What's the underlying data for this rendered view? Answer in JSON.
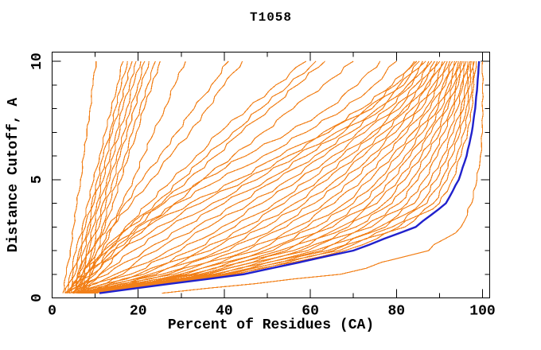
{
  "chart_data": {
    "type": "line",
    "title": "T1058",
    "xlabel": "Percent of Residues (CA)",
    "ylabel": "Distance Cutoff, A",
    "xlim": [
      0,
      101.7
    ],
    "ylim": [
      0,
      10.39
    ],
    "x_ticks": [
      0,
      10,
      20,
      30,
      40,
      50,
      60,
      70,
      80,
      90,
      100
    ],
    "x_tick_labels": [
      "0",
      "20",
      "40",
      "60",
      "80",
      "100"
    ],
    "x_labeled_ticks": [
      0,
      20,
      40,
      60,
      80,
      100
    ],
    "y_ticks": [
      0,
      1,
      2,
      3,
      4,
      5,
      6,
      7,
      8,
      9,
      10
    ],
    "y_tick_labels": [
      "0",
      "5",
      "10"
    ],
    "y_labeled_ticks": [
      0,
      5,
      10
    ],
    "grid": false,
    "legend": false,
    "colors": {
      "orange": "#f28019",
      "blue": "#2121cc"
    },
    "cutoffs": [
      0.2,
      1,
      2,
      3,
      4,
      5,
      6,
      7,
      8,
      9,
      10
    ],
    "series": [
      {
        "id": "orange-01",
        "color": "orange",
        "x": [
          2.5,
          3.3,
          4.2,
          5,
          5.8,
          6.6,
          7.4,
          8.1,
          8.8,
          9.5,
          10.2
        ]
      },
      {
        "id": "orange-02",
        "color": "orange",
        "x": [
          3,
          4.2,
          5.6,
          7,
          8.3,
          9.7,
          11,
          12.4,
          13.8,
          15.1,
          16.5
        ]
      },
      {
        "id": "orange-03",
        "color": "orange",
        "x": [
          3.4,
          4.8,
          6.3,
          7.7,
          9.2,
          10.5,
          11.9,
          13.4,
          14.7,
          16.1,
          17.5
        ]
      },
      {
        "id": "orange-04",
        "color": "orange",
        "x": [
          3.9,
          5.3,
          6.8,
          8.3,
          9.7,
          11.2,
          12.6,
          14,
          15.5,
          17,
          18.6
        ]
      },
      {
        "id": "orange-05",
        "color": "orange",
        "x": [
          4.4,
          5.9,
          7.4,
          8.9,
          10.4,
          11.9,
          13.5,
          14.9,
          16.4,
          18,
          19.5
        ]
      },
      {
        "id": "orange-06",
        "color": "orange",
        "x": [
          4.9,
          6.4,
          8,
          9.5,
          11.1,
          12.7,
          14.2,
          15.7,
          17.3,
          18.9,
          20.6
        ]
      },
      {
        "id": "orange-07",
        "color": "orange",
        "x": [
          5.4,
          7,
          8.6,
          10.2,
          11.8,
          13.4,
          15,
          16.7,
          18.3,
          19.9,
          21.5
        ]
      },
      {
        "id": "orange-08",
        "color": "orange",
        "x": [
          5.9,
          7.5,
          9.2,
          10.9,
          12.5,
          14.2,
          15.8,
          17.4,
          19.1,
          20.8,
          22.5
        ]
      },
      {
        "id": "orange-09",
        "color": "orange",
        "x": [
          6.4,
          8.1,
          9.9,
          11.6,
          13.4,
          15.1,
          16.9,
          18.7,
          20.4,
          22.2,
          24
        ]
      },
      {
        "id": "orange-10",
        "color": "orange",
        "x": [
          6.9,
          8.7,
          10.5,
          12.3,
          14.1,
          16,
          17.8,
          19.6,
          21.4,
          23.2,
          25.1
        ]
      },
      {
        "id": "orange-11",
        "color": "orange",
        "x": [
          7,
          9.2,
          11.6,
          14,
          16.4,
          18.8,
          21.2,
          23.7,
          26.1,
          28.5,
          31
        ]
      },
      {
        "id": "orange-12",
        "color": "orange",
        "x": [
          4,
          6,
          9,
          13,
          17,
          21,
          25,
          29,
          33,
          37,
          41
        ]
      },
      {
        "id": "orange-13",
        "color": "orange",
        "x": [
          5,
          7,
          10.5,
          14,
          18.5,
          23,
          27.5,
          32,
          36,
          40,
          44.2
        ]
      },
      {
        "id": "orange-14",
        "color": "orange",
        "x": [
          5.2,
          8,
          12,
          17,
          22.5,
          28,
          33.5,
          39,
          45.5,
          52,
          59
        ]
      },
      {
        "id": "orange-15",
        "color": "orange",
        "x": [
          5.8,
          9,
          13,
          18,
          24,
          30,
          36,
          42,
          48.5,
          55,
          61.3
        ]
      },
      {
        "id": "orange-16",
        "color": "orange",
        "x": [
          6.2,
          10,
          14.5,
          19.5,
          25.5,
          31.5,
          38,
          44,
          50.5,
          57,
          63.4
        ]
      },
      {
        "id": "orange-17",
        "color": "orange",
        "x": [
          6.8,
          11,
          16,
          22,
          28.5,
          35,
          42,
          49,
          56,
          63,
          70
        ]
      },
      {
        "id": "orange-18",
        "color": "orange",
        "x": [
          3,
          7,
          12,
          18,
          26,
          35,
          45,
          55,
          64,
          71,
          76.2
        ]
      },
      {
        "id": "orange-19",
        "color": "orange",
        "x": [
          3.4,
          7.6,
          13,
          20,
          29,
          39,
          49,
          59,
          68,
          74.8,
          80
        ]
      },
      {
        "id": "orange-20",
        "color": "orange",
        "x": [
          3,
          8,
          14,
          22,
          32,
          43,
          53,
          63,
          72,
          79,
          84.2
        ]
      },
      {
        "id": "orange-21",
        "color": "orange",
        "x": [
          3.3,
          9.4,
          16,
          24.5,
          34.5,
          45,
          54.8,
          64.3,
          73,
          79.8,
          84.7
        ]
      },
      {
        "id": "orange-22",
        "color": "orange",
        "x": [
          3.6,
          11.2,
          18.9,
          27.3,
          37.2,
          47.6,
          56.8,
          66,
          74.3,
          80.7,
          85.3
        ]
      },
      {
        "id": "orange-23",
        "color": "orange",
        "x": [
          4,
          12.9,
          21.5,
          30.5,
          40,
          50,
          59,
          67.7,
          75.6,
          81.7,
          86.1
        ]
      },
      {
        "id": "orange-24",
        "color": "orange",
        "x": [
          4.3,
          14.7,
          24.3,
          33.5,
          43,
          52.4,
          61,
          69.4,
          76.8,
          82.6,
          86.8
        ]
      },
      {
        "id": "orange-25",
        "color": "orange",
        "x": [
          4.7,
          16.4,
          27,
          36.4,
          46,
          55,
          63.2,
          71,
          78.1,
          83.6,
          87.5
        ]
      },
      {
        "id": "orange-26",
        "color": "orange",
        "x": [
          5,
          18.2,
          29.8,
          39.4,
          48.8,
          57.4,
          65.2,
          72.7,
          79.4,
          84.5,
          88.2
        ]
      },
      {
        "id": "orange-27",
        "color": "orange",
        "x": [
          5.4,
          20,
          32.4,
          42.4,
          51.7,
          60,
          67.3,
          74.4,
          80.7,
          85.5,
          88.9
        ]
      },
      {
        "id": "orange-28",
        "color": "orange",
        "x": [
          5.7,
          21.3,
          34.5,
          44.8,
          54,
          62,
          69,
          75.7,
          81.7,
          86.2,
          89.5
        ]
      },
      {
        "id": "orange-29",
        "color": "orange",
        "x": [
          5.9,
          22.7,
          36.7,
          47.2,
          56.4,
          64,
          70.6,
          77.1,
          82.7,
          87,
          90.1
        ]
      },
      {
        "id": "orange-30",
        "color": "orange",
        "x": [
          6.2,
          24.1,
          38.8,
          49.6,
          58.7,
          66,
          72.3,
          78.4,
          83.7,
          87.7,
          90.7
        ]
      },
      {
        "id": "orange-31",
        "color": "orange",
        "x": [
          6.5,
          25.5,
          41,
          52,
          61,
          68,
          74,
          79.8,
          84.8,
          88.5,
          91.3
        ]
      },
      {
        "id": "orange-32",
        "color": "orange",
        "x": [
          6.8,
          27,
          43.2,
          54.4,
          63.3,
          70,
          75.7,
          81.1,
          85.8,
          89.3,
          91.8
        ]
      },
      {
        "id": "orange-33",
        "color": "orange",
        "x": [
          7.1,
          28.3,
          45.3,
          56.8,
          65.6,
          72,
          77.4,
          82.4,
          86.8,
          90,
          92.4
        ]
      },
      {
        "id": "orange-34",
        "color": "orange",
        "x": [
          7.3,
          29.7,
          47.5,
          59.2,
          68,
          74,
          79,
          83.8,
          87.8,
          90.8,
          93
        ]
      },
      {
        "id": "orange-35",
        "color": "orange",
        "x": [
          7.6,
          31,
          49.4,
          61.3,
          70,
          75.8,
          80.5,
          84.9,
          88.7,
          91.4,
          93.5
        ]
      },
      {
        "id": "orange-36",
        "color": "orange",
        "x": [
          7.8,
          32.2,
          51.3,
          63.4,
          72,
          77.5,
          82,
          86.1,
          89.6,
          92.1,
          94
        ]
      },
      {
        "id": "orange-37",
        "color": "orange",
        "x": [
          8,
          33.2,
          52.9,
          65.2,
          73.8,
          79,
          83.2,
          87.1,
          90.4,
          92.7,
          94.4
        ]
      },
      {
        "id": "orange-38",
        "color": "orange",
        "x": [
          8.3,
          34.3,
          54.5,
          67,
          75.5,
          80.5,
          84.5,
          88.1,
          91.1,
          93.3,
          94.9
        ]
      },
      {
        "id": "orange-39",
        "color": "orange",
        "x": [
          8.5,
          35.3,
          56.1,
          68.8,
          77.2,
          82,
          85.8,
          89.1,
          91.9,
          93.8,
          95.3
        ]
      },
      {
        "id": "orange-40",
        "color": "orange",
        "x": [
          8.7,
          36.4,
          57.7,
          70.6,
          79,
          83.5,
          87,
          90.1,
          92.7,
          94.4,
          95.7
        ]
      },
      {
        "id": "orange-41",
        "color": "orange",
        "x": [
          8.9,
          37.4,
          59.4,
          72.4,
          80.7,
          85,
          88.3,
          91.1,
          93.4,
          95,
          96.2
        ]
      },
      {
        "id": "orange-42",
        "color": "orange",
        "x": [
          9.1,
          38.5,
          61,
          74.2,
          82.5,
          86.5,
          89.5,
          92.1,
          94.2,
          95.5,
          96.6
        ]
      },
      {
        "id": "orange-43",
        "color": "orange",
        "x": [
          9.3,
          39.5,
          62.6,
          76,
          84.2,
          88,
          90.8,
          93.2,
          95,
          96.1,
          97.1
        ]
      },
      {
        "id": "orange-44",
        "color": "orange",
        "x": [
          9.5,
          40.4,
          64,
          77.5,
          85.7,
          89.3,
          91.9,
          94,
          95.6,
          96.6,
          97.4
        ]
      },
      {
        "id": "orange-45",
        "color": "orange",
        "x": [
          9.7,
          41.3,
          65.3,
          79,
          87.1,
          90.5,
          92.9,
          94.8,
          96.2,
          97.1,
          97.8
        ]
      },
      {
        "id": "orange-46",
        "color": "orange",
        "x": [
          9.8,
          42.1,
          66.7,
          80.5,
          88.6,
          91.8,
          94,
          95.7,
          96.9,
          97.5,
          98.1
        ]
      },
      {
        "id": "orange-47",
        "color": "orange",
        "x": [
          10,
          43,
          68,
          82,
          90,
          93,
          95,
          96.5,
          97.5,
          98,
          98.5
        ]
      },
      {
        "id": "orange-48-best",
        "color": "orange",
        "x": [
          25.5,
          67,
          87.5,
          95,
          97.5,
          98.7,
          99.5,
          100,
          100,
          100,
          100
        ]
      },
      {
        "id": "blue-highlight",
        "color": "blue",
        "x": [
          11,
          44.5,
          70,
          84.5,
          91.5,
          94.5,
          96.3,
          97.5,
          98.3,
          98.8,
          99.2
        ]
      }
    ]
  }
}
